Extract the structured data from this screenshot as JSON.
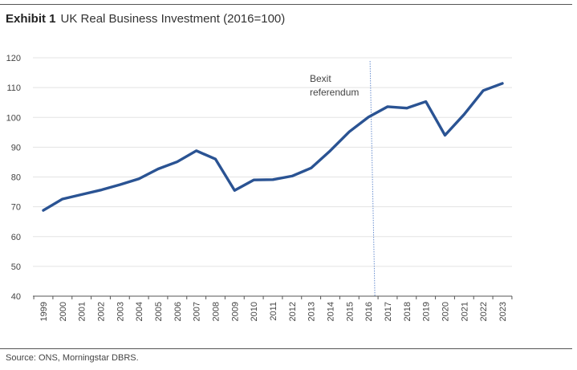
{
  "title": {
    "exhibit": "Exhibit 1",
    "text": "UK Real Business Investment (2016=100)"
  },
  "source": "Source: ONS, Morningstar DBRS.",
  "colors": {
    "line": "#2a5393",
    "grid": "#e3e3e3",
    "axis": "#555555",
    "marker": "#6a8fcf"
  },
  "chart_data": {
    "type": "line",
    "title": "UK Real Business Investment (2016=100)",
    "xlabel": "",
    "ylabel": "",
    "ylim": [
      40,
      120
    ],
    "yticks": [
      "40",
      "50",
      "60",
      "70",
      "80",
      "90",
      "100",
      "110",
      "120"
    ],
    "categories": [
      "1999",
      "2000",
      "2001",
      "2002",
      "2003",
      "2004",
      "2005",
      "2006",
      "2007",
      "2008",
      "2009",
      "2010",
      "2011",
      "2012",
      "2013",
      "2014",
      "2015",
      "2016",
      "2017",
      "2018",
      "2019",
      "2020",
      "2021",
      "2022",
      "2023"
    ],
    "series": [
      {
        "name": "UK Real Business Investment",
        "values": [
          68.8,
          72.6,
          74.1,
          75.6,
          77.4,
          79.4,
          82.7,
          85.1,
          88.8,
          86.0,
          75.5,
          79.0,
          79.1,
          80.3,
          83.0,
          88.8,
          95.2,
          100.1,
          103.6,
          103.1,
          105.3,
          94.0,
          101.0,
          109.0,
          111.4
        ]
      }
    ],
    "grid": true,
    "annotations": [
      {
        "text_lines": [
          "Bexit",
          "referendum"
        ],
        "at_x": 2016.25,
        "style": "dotted-vertical-line"
      }
    ]
  }
}
